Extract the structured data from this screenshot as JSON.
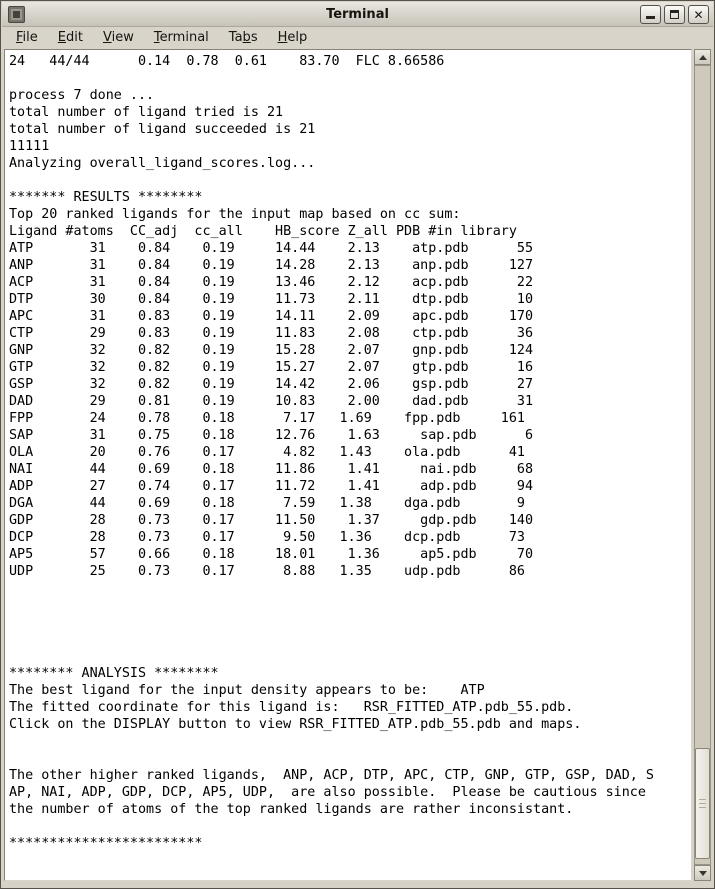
{
  "window": {
    "title": "Terminal"
  },
  "menu": {
    "items": [
      {
        "pre": "",
        "key": "F",
        "rest": "ile"
      },
      {
        "pre": "",
        "key": "E",
        "rest": "dit"
      },
      {
        "pre": "",
        "key": "V",
        "rest": "iew"
      },
      {
        "pre": "",
        "key": "T",
        "rest": "erminal"
      },
      {
        "pre": "Ta",
        "key": "b",
        "rest": "s"
      },
      {
        "pre": "",
        "key": "H",
        "rest": "elp"
      }
    ]
  },
  "icons": {
    "app_icon": "terminal-icon",
    "minimize": "minimize-icon",
    "maximize": "maximize-icon",
    "close": "close-icon",
    "scroll_up": "arrow-up-icon",
    "scroll_down": "arrow-down-icon"
  },
  "colors": {
    "chrome": "#d6d2c8",
    "terminal_bg": "#ffffff",
    "terminal_fg": "#000000"
  },
  "terminal": {
    "lines": [
      "24   44/44      0.14  0.78  0.61    83.70  FLC 8.66586",
      "",
      "process 7 done ...",
      "total number of ligand tried is 21",
      "total number of ligand succeeded is 21",
      "11111",
      "Analyzing overall_ligand_scores.log...",
      "",
      "******* RESULTS ********",
      "Top 20 ranked ligands for the input map based on cc sum:",
      "Ligand #atoms  CC_adj  cc_all    HB_score Z_all PDB #in library",
      "ATP       31    0.84    0.19     14.44    2.13    atp.pdb      55",
      "ANP       31    0.84    0.19     14.28    2.13    anp.pdb     127",
      "ACP       31    0.84    0.19     13.46    2.12    acp.pdb      22",
      "DTP       30    0.84    0.19     11.73    2.11    dtp.pdb      10",
      "APC       31    0.83    0.19     14.11    2.09    apc.pdb     170",
      "CTP       29    0.83    0.19     11.83    2.08    ctp.pdb      36",
      "GNP       32    0.82    0.19     15.28    2.07    gnp.pdb     124",
      "GTP       32    0.82    0.19     15.27    2.07    gtp.pdb      16",
      "GSP       32    0.82    0.19     14.42    2.06    gsp.pdb      27",
      "DAD       29    0.81    0.19     10.83    2.00    dad.pdb      31",
      "FPP       24    0.78    0.18      7.17   1.69    fpp.pdb     161",
      "SAP       31    0.75    0.18     12.76    1.63     sap.pdb      6",
      "OLA       20    0.76    0.17      4.82   1.43    ola.pdb      41",
      "NAI       44    0.69    0.18     11.86    1.41     nai.pdb     68",
      "ADP       27    0.74    0.17     11.72    1.41     adp.pdb     94",
      "DGA       44    0.69    0.18      7.59   1.38    dga.pdb       9",
      "GDP       28    0.73    0.17     11.50    1.37     gdp.pdb    140",
      "DCP       28    0.73    0.17      9.50   1.36    dcp.pdb      73",
      "AP5       57    0.66    0.18     18.01    1.36     ap5.pdb     70",
      "UDP       25    0.73    0.17      8.88   1.35    udp.pdb      86",
      "",
      "",
      "",
      "",
      "",
      "******** ANALYSIS ********",
      "The best ligand for the input density appears to be:    ATP",
      "The fitted coordinate for this ligand is:   RSR_FITTED_ATP.pdb_55.pdb.",
      "Click on the DISPLAY button to view RSR_FITTED_ATP.pdb_55.pdb and maps.",
      "",
      "",
      "The other higher ranked ligands,  ANP, ACP, DTP, APC, CTP, GNP, GTP, GSP, DAD, S",
      "AP, NAI, ADP, GDP, DCP, AP5, UDP,  are also possible.  Please be cautious since",
      "the number of atoms of the top ranked ligands are rather inconsistant.",
      "",
      "************************"
    ]
  }
}
